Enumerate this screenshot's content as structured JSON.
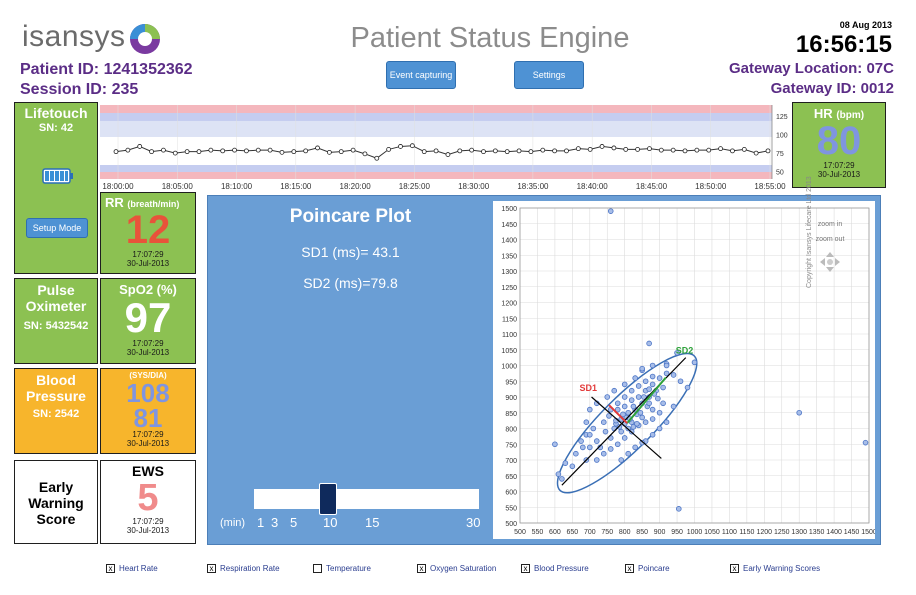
{
  "header": {
    "logo_text": "isansys",
    "title": "Patient Status Engine",
    "patient_label": "Patient ID:",
    "patient_id": "1241352362",
    "session_label": "Session ID:",
    "session_id": "235",
    "date": "08 Aug 2013",
    "time": "16:56:15",
    "gateway_location_label": "Gateway Location:",
    "gateway_location": "07C",
    "gateway_id_label": "Gateway ID:",
    "gateway_id": "0012",
    "buttons": {
      "event": "Event capturing",
      "settings": "Settings"
    }
  },
  "lifetouch": {
    "title": "Lifetouch",
    "sn": "SN: 42",
    "setup_button": "Setup Mode"
  },
  "rr": {
    "title": "RR",
    "unit": "(breath/min)",
    "value": "12",
    "time": "17:07:29",
    "date": "30-Jul-2013",
    "value_color": "#e8533a"
  },
  "hr": {
    "title": "HR",
    "unit": "(bpm)",
    "value": "80",
    "time": "17:07:29",
    "date": "30-Jul-2013",
    "value_color": "#7f95e0"
  },
  "pulse_ox": {
    "title1": "Pulse",
    "title2": "Oximeter",
    "sn": "SN: 5432542"
  },
  "spo2": {
    "title": "SpO2 (%)",
    "value": "97",
    "time": "17:07:29",
    "date": "30-Jul-2013"
  },
  "bp_device": {
    "title1": "Blood",
    "title2": "Pressure",
    "sn": "SN: 2542"
  },
  "bp": {
    "label": "(SYS/DIA)",
    "sys": "108",
    "dia": "81",
    "time": "17:07:29",
    "date": "30-Jul-2013",
    "value_color": "#7f95e0"
  },
  "ews_label": {
    "line1": "Early",
    "line2": "Warning",
    "line3": "Score"
  },
  "ews": {
    "title": "EWS",
    "value": "5",
    "time": "17:07:29",
    "date": "30-Jul-2013",
    "value_color": "#f08b8b"
  },
  "trend": {
    "y_ticks": [
      "125",
      "100",
      "75",
      "50"
    ],
    "x_ticks": [
      "18:00:00",
      "18:05:00",
      "18:10:00",
      "18:15:00",
      "18:20:00",
      "18:25:00",
      "18:30:00",
      "18:35:00",
      "18:40:00",
      "18:45:00",
      "18:50:00",
      "18:55:00"
    ],
    "ylim": [
      40,
      140
    ],
    "values": [
      77,
      79,
      84,
      77,
      79,
      75,
      77,
      77,
      79,
      78,
      79,
      78,
      79,
      79,
      76,
      77,
      78,
      82,
      76,
      77,
      79,
      74,
      68,
      80,
      84,
      85,
      77,
      78,
      73,
      78,
      79,
      77,
      78,
      77,
      78,
      77,
      79,
      78,
      78,
      81,
      80,
      84,
      82,
      80,
      80,
      81,
      79,
      79,
      78,
      79,
      79,
      81,
      78,
      80,
      75,
      78
    ]
  },
  "poincare": {
    "title": "Poincare Plot",
    "sd1": "SD1 (ms)= 43.1",
    "sd2": "SD2 (ms)=79.8",
    "slider_ticks": [
      "1",
      "3",
      "5",
      "10",
      "15",
      "30"
    ],
    "slider_prefix": "(min)",
    "slider_value": 10,
    "zoom_in": "zoom in",
    "zoom_out": "zoom out"
  },
  "chart_data": {
    "type": "scatter",
    "title": "",
    "xlabel": "",
    "ylabel": "",
    "xlim": [
      500,
      1500
    ],
    "ylim": [
      500,
      1500
    ],
    "x_ticks": [
      500,
      550,
      600,
      650,
      700,
      750,
      800,
      850,
      900,
      950,
      1000,
      1050,
      1100,
      1150,
      1200,
      1250,
      1300,
      1350,
      1400,
      1450,
      1500
    ],
    "y_ticks": [
      500,
      550,
      600,
      650,
      700,
      750,
      800,
      850,
      900,
      950,
      1000,
      1050,
      1100,
      1150,
      1200,
      1250,
      1300,
      1350,
      1400,
      1450,
      1500
    ],
    "grid": true,
    "points": [
      [
        760,
        1490
      ],
      [
        870,
        1070
      ],
      [
        950,
        1040
      ],
      [
        1000,
        1010
      ],
      [
        920,
        1005
      ],
      [
        850,
        985
      ],
      [
        1300,
        850
      ],
      [
        1490,
        755
      ],
      [
        690,
        700
      ],
      [
        955,
        545
      ],
      [
        600,
        750
      ],
      [
        610,
        655
      ],
      [
        630,
        690
      ],
      [
        660,
        720
      ],
      [
        675,
        760
      ],
      [
        690,
        780
      ],
      [
        710,
        800
      ],
      [
        720,
        760
      ],
      [
        740,
        820
      ],
      [
        755,
        840
      ],
      [
        770,
        800
      ],
      [
        780,
        860
      ],
      [
        790,
        830
      ],
      [
        800,
        870
      ],
      [
        810,
        850
      ],
      [
        820,
        890
      ],
      [
        830,
        860
      ],
      [
        840,
        900
      ],
      [
        850,
        880
      ],
      [
        860,
        920
      ],
      [
        870,
        900
      ],
      [
        880,
        940
      ],
      [
        890,
        920
      ],
      [
        900,
        960
      ],
      [
        910,
        930
      ],
      [
        920,
        975
      ],
      [
        730,
        740
      ],
      [
        745,
        790
      ],
      [
        760,
        770
      ],
      [
        775,
        815
      ],
      [
        790,
        790
      ],
      [
        805,
        835
      ],
      [
        820,
        820
      ],
      [
        835,
        845
      ],
      [
        850,
        835
      ],
      [
        865,
        870
      ],
      [
        880,
        860
      ],
      [
        895,
        895
      ],
      [
        910,
        880
      ],
      [
        700,
        740
      ],
      [
        720,
        700
      ],
      [
        740,
        720
      ],
      [
        760,
        735
      ],
      [
        780,
        750
      ],
      [
        800,
        770
      ],
      [
        820,
        790
      ],
      [
        840,
        810
      ],
      [
        860,
        820
      ],
      [
        880,
        830
      ],
      [
        900,
        850
      ],
      [
        760,
        860
      ],
      [
        780,
        880
      ],
      [
        800,
        900
      ],
      [
        820,
        920
      ],
      [
        840,
        935
      ],
      [
        860,
        950
      ],
      [
        880,
        965
      ],
      [
        690,
        820
      ],
      [
        700,
        860
      ],
      [
        720,
        880
      ],
      [
        750,
        900
      ],
      [
        770,
        920
      ],
      [
        800,
        940
      ],
      [
        830,
        960
      ],
      [
        850,
        990
      ],
      [
        620,
        640
      ],
      [
        650,
        680
      ],
      [
        680,
        740
      ],
      [
        700,
        780
      ],
      [
        880,
        1000
      ],
      [
        920,
        1000
      ],
      [
        940,
        970
      ],
      [
        960,
        950
      ],
      [
        980,
        930
      ],
      [
        860,
        760
      ],
      [
        880,
        780
      ],
      [
        900,
        800
      ],
      [
        920,
        820
      ],
      [
        940,
        870
      ],
      [
        790,
        700
      ],
      [
        810,
        720
      ],
      [
        830,
        740
      ],
      [
        850,
        755
      ],
      [
        810,
        800
      ],
      [
        825,
        805
      ],
      [
        815,
        830
      ],
      [
        835,
        815
      ],
      [
        845,
        850
      ],
      [
        800,
        815
      ],
      [
        785,
        805
      ],
      [
        795,
        845
      ],
      [
        775,
        825
      ],
      [
        825,
        870
      ],
      [
        855,
        900
      ],
      [
        870,
        880
      ],
      [
        885,
        910
      ],
      [
        870,
        925
      ]
    ],
    "sd_axes": {
      "sd2_line": [
        [
          620,
          620
        ],
        [
          975,
          1025
        ]
      ],
      "sd1_line": [
        [
          705,
          900
        ],
        [
          905,
          705
        ]
      ],
      "center": [
        807,
        817
      ]
    }
  },
  "copyright": "Copyright Isansys Lifecare Ltd 2013",
  "checkboxes": [
    {
      "label": "Heart Rate",
      "checked": true
    },
    {
      "label": "Respiration Rate",
      "checked": true
    },
    {
      "label": "Temperature",
      "checked": false
    },
    {
      "label": "Oxygen Saturation",
      "checked": true
    },
    {
      "label": "Blood Pressure",
      "checked": true
    },
    {
      "label": "Poincare",
      "checked": true
    },
    {
      "label": "Early Warning Scores",
      "checked": true
    }
  ],
  "check_mark": "x",
  "colors": {
    "tile_green": "#8cc152",
    "tile_orange": "#f7b52c",
    "panel_blue": "#6a9ed5",
    "brand_purple": "#5b2d86"
  }
}
